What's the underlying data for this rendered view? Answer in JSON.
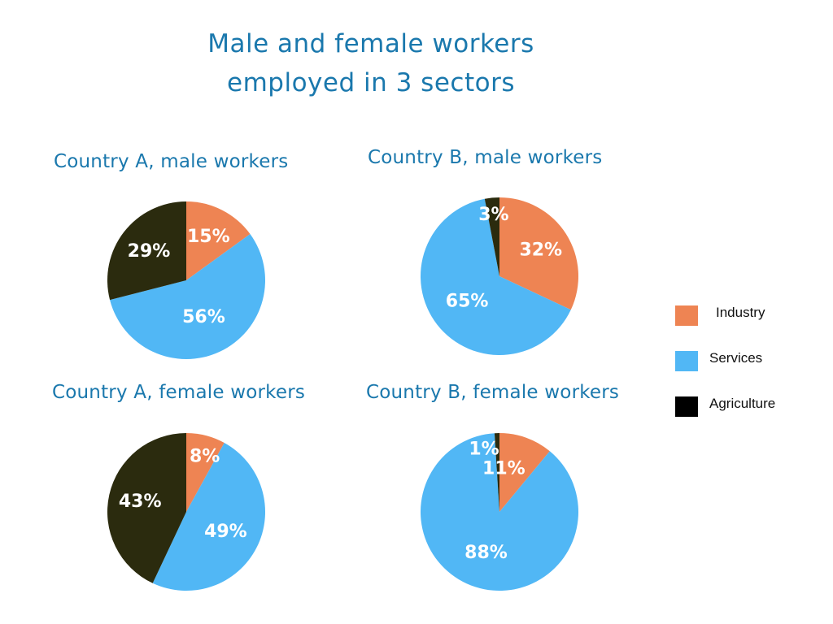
{
  "title_lines": [
    "Male and female workers",
    "employed in 3 sectors"
  ],
  "colors": {
    "Industry": "#ee8453",
    "Services": "#51b7f5",
    "Agriculture": "#2b2b0e",
    "Agriculture_legend": "#000000",
    "label": "#ffffff",
    "title": "#1a78ad"
  },
  "legend": {
    "items": [
      {
        "label": "Industry",
        "color": "#ee8453"
      },
      {
        "label": "Services",
        "color": "#51b7f5"
      },
      {
        "label": "Agriculture",
        "color": "#000000"
      }
    ]
  },
  "chart_data": [
    {
      "type": "pie",
      "title": "Country A, male workers",
      "categories": [
        "Industry",
        "Services",
        "Agriculture"
      ],
      "values": [
        15,
        56,
        29
      ],
      "labels": [
        "15%",
        "56%",
        "29%"
      ]
    },
    {
      "type": "pie",
      "title": "Country B, male workers",
      "categories": [
        "Industry",
        "Services",
        "Agriculture"
      ],
      "values": [
        32,
        65,
        3
      ],
      "labels": [
        "32%",
        "65%",
        "3%"
      ]
    },
    {
      "type": "pie",
      "title": "Country A, female workers",
      "categories": [
        "Industry",
        "Services",
        "Agriculture"
      ],
      "values": [
        8,
        49,
        43
      ],
      "labels": [
        "8%",
        "49%",
        "43%"
      ]
    },
    {
      "type": "pie",
      "title": "Country B, female workers",
      "categories": [
        "Industry",
        "Services",
        "Agriculture"
      ],
      "values": [
        11,
        88,
        1
      ],
      "labels": [
        "11%",
        "88%",
        "1%"
      ]
    }
  ]
}
